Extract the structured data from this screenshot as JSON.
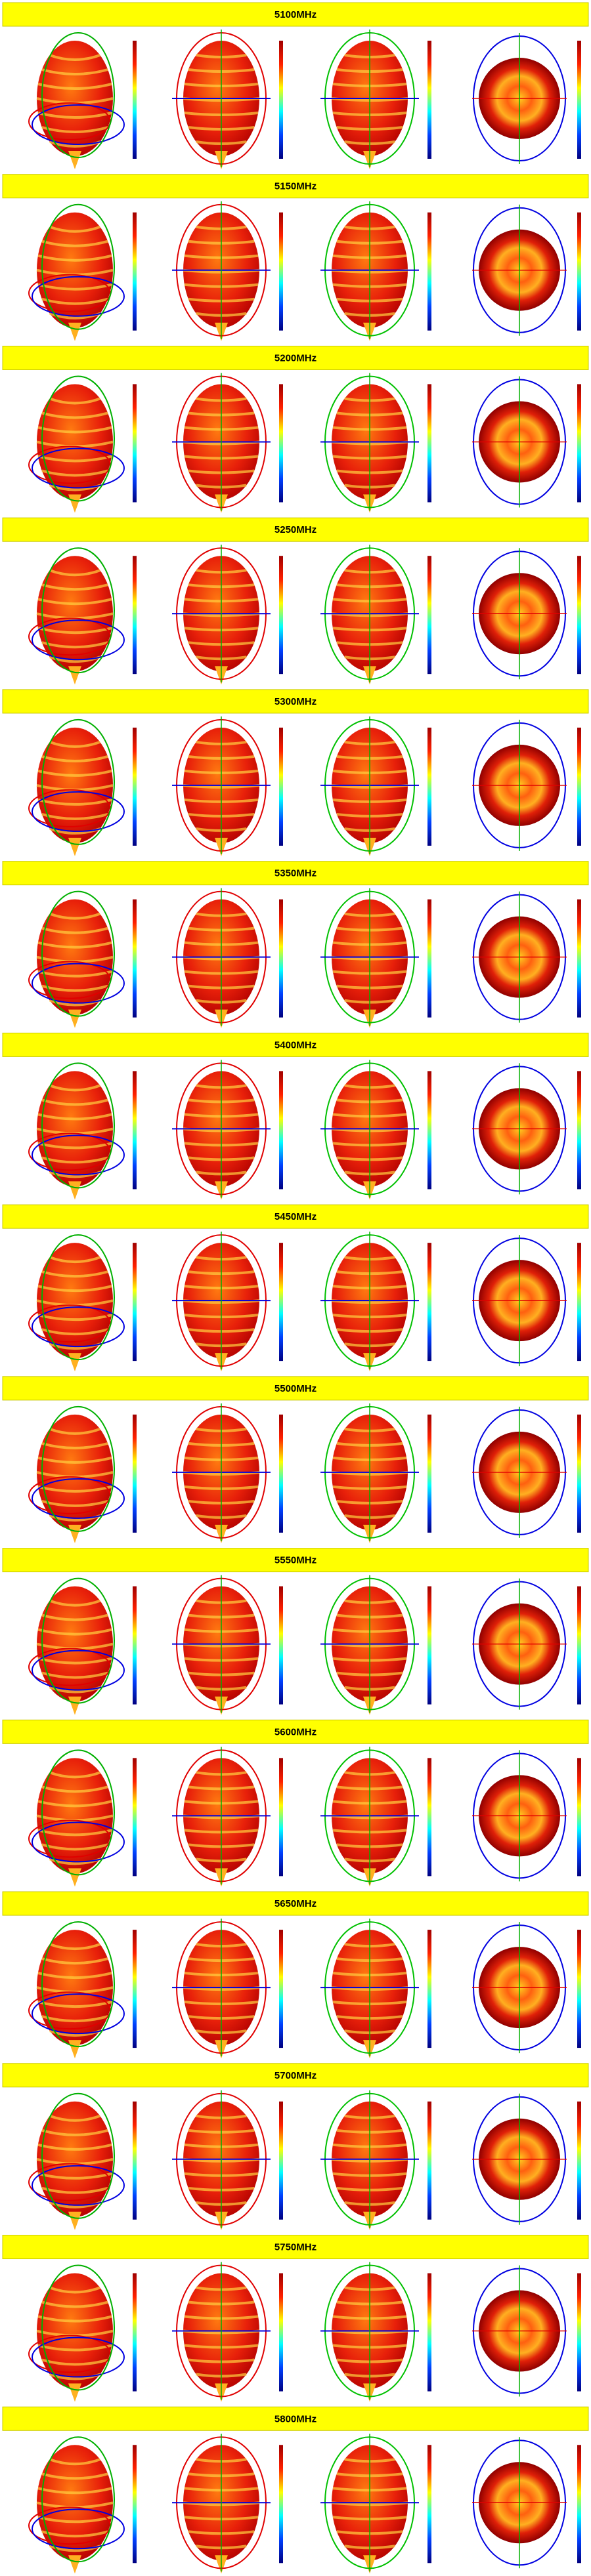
{
  "sections": [
    {
      "title": "5100MHz"
    },
    {
      "title": "5150MHz"
    },
    {
      "title": "5200MHz"
    },
    {
      "title": "5250MHz"
    },
    {
      "title": "5300MHz"
    },
    {
      "title": "5350MHz"
    },
    {
      "title": "5400MHz"
    },
    {
      "title": "5450MHz"
    },
    {
      "title": "5500MHz"
    },
    {
      "title": "5550MHz"
    },
    {
      "title": "5600MHz"
    },
    {
      "title": "5650MHz"
    },
    {
      "title": "5700MHz"
    },
    {
      "title": "5750MHz"
    },
    {
      "title": "5800MHz"
    }
  ]
}
